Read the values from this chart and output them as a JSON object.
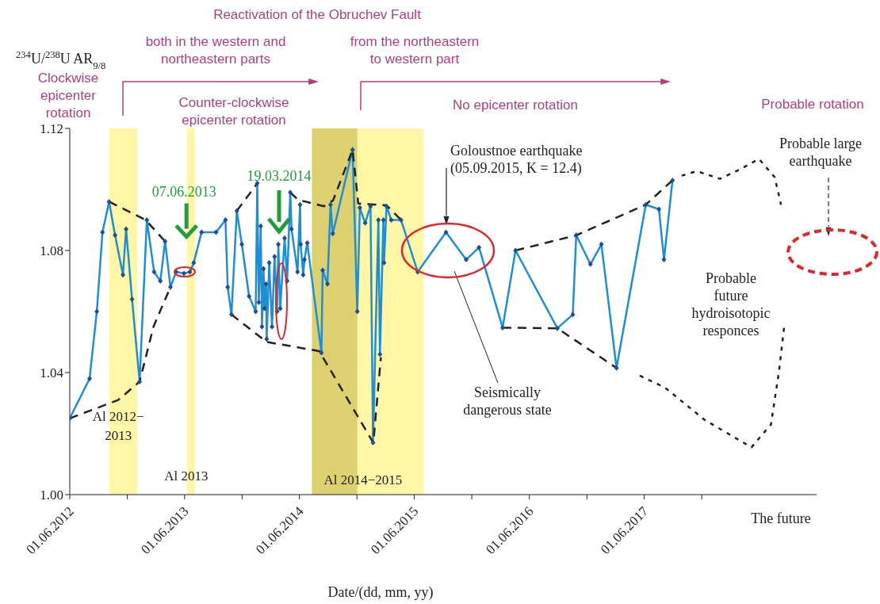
{
  "chart_data": {
    "type": "line",
    "title": "Reactivation of the Obruchev Fault",
    "ylabel": "$^{234}$U/$^{238}$U AR$_{9/8}$",
    "xlabel": "Date/(dd, mm, yy)",
    "marker": "diamond",
    "xlim": [
      "2012-06-01",
      "2018-12-01"
    ],
    "ylim": [
      1.0,
      1.12
    ],
    "xticks": [
      {
        "value": "2012-06-01",
        "label": "01.06.2012"
      },
      {
        "value": "2012-12-01",
        "label": null
      },
      {
        "value": "2013-06-01",
        "label": "01.06.2013"
      },
      {
        "value": "2013-12-01",
        "label": null
      },
      {
        "value": "2014-06-01",
        "label": "01.06.2014"
      },
      {
        "value": "2014-12-01",
        "label": null
      },
      {
        "value": "2015-06-01",
        "label": "01.06.2015"
      },
      {
        "value": "2015-12-01",
        "label": null
      },
      {
        "value": "2016-06-01",
        "label": "01.06.2016"
      },
      {
        "value": "2016-12-01",
        "label": null
      },
      {
        "value": "2017-06-01",
        "label": "01.06.2017"
      },
      {
        "value": "2017-12-01",
        "label": null
      }
    ],
    "yticks": [
      {
        "value": 1.0,
        "label": "1.00"
      },
      1.04,
      1.08,
      1.12
    ],
    "bands": [
      {
        "axis": "x",
        "from": "2012-10-04",
        "to": "2013-01-01",
        "label": "Al 2012−\n2013",
        "color": "#fff6a6"
      },
      {
        "axis": "x",
        "from": "2013-06-09",
        "to": "2013-07-04",
        "label": "Al 2013",
        "color": "#fff6a6"
      },
      {
        "axis": "x",
        "from": "2014-07-11",
        "to": "2015-07-01",
        "label": "Al 2014−2015",
        "color": "#fff6a6"
      },
      {
        "axis": "x",
        "from": "2014-07-11",
        "to": "2014-12-02",
        "color": "#dcd06f"
      }
    ],
    "annotations": [
      "both in the western and\nnortheastern parts",
      "from the northeastern\nto western part",
      "Clockwise\nepicenter\nrotation",
      "Counter-clockwise\nepicenter rotation",
      "No epicenter rotation",
      "Probable rotation",
      {
        "text": "07.06.2013",
        "x": "2013-06-07",
        "y": 1.084
      },
      "19.03.2014",
      "Goloustnoe earthquake\n(05.09.2015, K = 12.4)",
      "Seismically\ndangerous state",
      "Probable large\nearthquake",
      "Probable\nfuture\nhydroisotopic\nresponces",
      "The future"
    ],
    "series": [
      {
        "color": "#1e8fd5",
        "x": [
          "2012-06-01",
          "2012-08-03",
          "2012-08-26",
          "2012-09-13",
          "2012-10-04",
          "2012-10-23",
          "2012-11-17",
          "2012-11-27",
          "2012-12-16",
          "2013-01-09",
          "2013-02-01",
          "2013-02-24",
          "2013-03-16",
          "2013-03-31",
          "2013-04-17",
          "2013-05-05",
          "2013-05-30",
          "2013-06-18",
          "2013-06-30",
          "2013-07-25",
          "2013-09-09",
          "2013-10-09",
          "2013-10-16",
          "2013-10-28",
          "2013-11-14",
          "2013-11-30",
          "2013-12-23",
          "2014-01-13",
          "2014-01-18",
          "2014-01-23",
          "2014-01-29",
          "2014-02-02",
          "2014-02-07",
          "2014-02-10",
          "2014-02-15",
          "2014-02-17",
          "2014-02-25",
          "2014-03-06",
          "2014-03-14",
          "2014-03-22",
          "2014-03-26",
          "2014-04-01",
          "2014-04-15",
          "2014-04-23",
          "2014-05-03",
          "2014-05-07",
          "2014-05-26",
          "2014-06-03",
          "2014-06-05",
          "2014-06-13",
          "2014-06-17",
          "2014-06-26",
          "2014-08-10",
          "2014-08-14",
          "2014-08-29",
          "2014-09-08",
          "2014-09-15",
          "2014-11-17",
          "2014-12-02",
          "2014-12-10",
          "2014-12-27",
          "2015-01-13",
          "2015-01-21",
          "2015-02-07",
          "2015-02-12",
          "2015-02-23",
          "2015-02-25",
          "2015-03-05",
          "2015-03-20",
          "2015-04-20",
          "2015-06-12",
          "2015-09-10",
          "2015-11-13",
          "2015-12-24",
          "2016-03-08",
          "2016-04-18",
          "2016-08-29",
          "2016-10-17",
          "2016-10-28",
          "2016-12-12",
          "2017-01-16",
          "2017-03-05",
          "2017-06-06",
          "2017-07-18",
          "2017-08-03",
          "2017-08-30"
        ],
        "values": [
          1.025,
          1.038,
          1.06,
          1.086,
          1.096,
          1.085,
          1.072,
          1.087,
          1.064,
          1.037,
          1.09,
          1.073,
          1.07,
          1.083,
          1.068,
          1.073,
          1.0725,
          1.073,
          1.076,
          1.086,
          1.086,
          1.09,
          1.068,
          1.059,
          1.093,
          1.082,
          1.065,
          1.06,
          1.102,
          1.063,
          1.088,
          1.055,
          1.074,
          1.061,
          1.069,
          1.051,
          1.076,
          1.055,
          1.078,
          1.06,
          1.082,
          1.061,
          1.084,
          1.07,
          1.099,
          1.087,
          1.073,
          1.095,
          1.082,
          1.072,
          1.077,
          1.0825,
          1.0465,
          1.0735,
          1.069,
          1.095,
          1.0855,
          1.113,
          1.06,
          1.094,
          1.089,
          1.0945,
          1.017,
          1.09,
          1.046,
          1.09,
          1.076,
          1.0945,
          1.09,
          1.09,
          1.073,
          1.086,
          1.077,
          1.081,
          1.0547,
          1.08,
          1.0545,
          1.059,
          1.085,
          1.0755,
          1.082,
          1.0415,
          1.095,
          1.0935,
          1.077,
          1.103
        ]
      },
      {
        "color": "#222222",
        "line_style": "dashed",
        "marker": "none",
        "x": [
          "2012-10-04",
          "2013-01-28",
          "2013-03-31"
        ],
        "values": [
          1.096,
          1.09,
          1.083
        ]
      },
      {
        "color": "#222222",
        "line_style": "dashed",
        "marker": "none",
        "x": [
          "2012-06-01",
          "2012-11-02",
          "2013-01-09",
          "2013-02-22",
          "2013-04-17"
        ],
        "values": [
          1.025,
          1.031,
          1.037,
          1.055,
          1.068
        ]
      },
      {
        "color": "#222222",
        "line_style": "dashed",
        "marker": "none",
        "x": [
          "2013-11-14",
          "2014-01-18"
        ],
        "values": [
          1.093,
          1.102
        ]
      },
      {
        "color": "#222222",
        "line_style": "dashed",
        "marker": "none",
        "x": [
          "2014-05-03",
          "2014-05-28",
          "2014-08-18",
          "2014-09-16",
          "2014-11-17",
          "2014-12-05",
          "2015-03-05",
          "2015-04-20"
        ],
        "values": [
          1.099,
          1.0966,
          1.0945,
          1.0964,
          1.113,
          1.0954,
          1.0948,
          1.09
        ]
      },
      {
        "color": "#222222",
        "line_style": "dashed",
        "marker": "none",
        "x": [
          "2013-10-28",
          "2014-02-17",
          "2014-05-03",
          "2014-08-03",
          "2015-01-22",
          "2015-02-15"
        ],
        "values": [
          1.059,
          1.05,
          1.0487,
          1.047,
          1.017,
          1.045
        ]
      },
      {
        "color": "#222222",
        "line_style": "dashed",
        "marker": "none",
        "x": [
          "2016-04-18",
          "2016-10-28",
          "2017-06-06",
          "2017-08-30"
        ],
        "values": [
          1.08,
          1.085,
          1.095,
          1.103
        ]
      },
      {
        "color": "#222222",
        "line_style": "dotted",
        "marker": "none",
        "x": [
          "2017-09-28",
          "2017-11-15",
          "2018-01-28",
          "2018-03-31",
          "2018-06-01",
          "2018-07-21",
          "2018-08-10"
        ],
        "values": [
          1.1045,
          1.106,
          1.1035,
          1.1065,
          1.11,
          1.104,
          1.095
        ]
      },
      {
        "color": "#222222",
        "line_style": "dashed",
        "marker": "none",
        "x": [
          "2016-03-08",
          "2016-08-29",
          "2017-03-05"
        ],
        "values": [
          1.0547,
          1.0545,
          1.0415
        ]
      },
      {
        "color": "#222222",
        "line_style": "dotted",
        "marker": "none",
        "x": [
          "2017-05-18",
          "2017-08-07",
          "2017-12-10",
          "2018-05-08",
          "2018-07-09",
          "2018-08-03",
          "2018-08-20"
        ],
        "values": [
          1.039,
          1.035,
          1.0245,
          1.0155,
          1.023,
          1.04,
          1.055
        ]
      }
    ]
  }
}
